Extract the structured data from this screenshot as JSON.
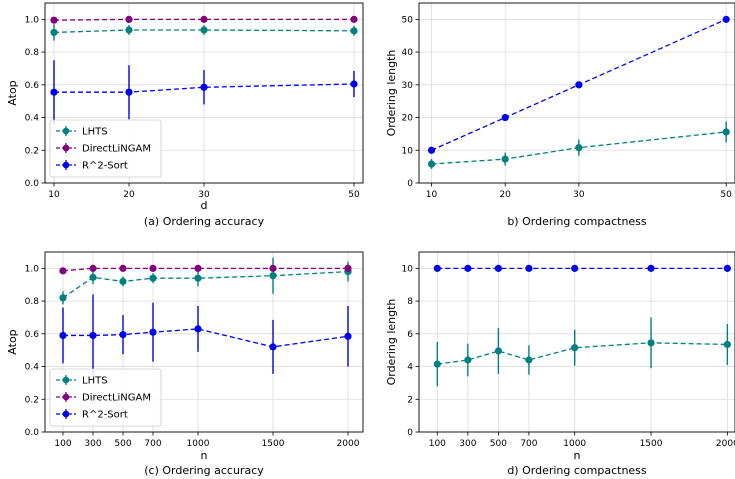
{
  "colors": {
    "LHTS": "#008080",
    "DirectLiNGAM": "#800080",
    "R^2-Sort": "#0000ee"
  },
  "chart_data": [
    {
      "type": "line",
      "caption": "(a) Ordering accuracy",
      "xlabel": "d",
      "ylabel": "Atop",
      "x": [
        10,
        20,
        30,
        50
      ],
      "xticks": [
        10,
        20,
        30,
        50
      ],
      "xlim": [
        8.8,
        51.2
      ],
      "yticks": [
        0.0,
        0.2,
        0.4,
        0.6,
        0.8,
        1.0
      ],
      "ylim": [
        0,
        1.1
      ],
      "grid": true,
      "legend": "lower-left",
      "series": [
        {
          "name": "LHTS",
          "values": [
            0.92,
            0.935,
            0.935,
            0.93
          ],
          "err": [
            0.05,
            0.03,
            0.03,
            0.03
          ]
        },
        {
          "name": "DirectLiNGAM",
          "values": [
            0.995,
            1.0,
            1.0,
            1.0
          ],
          "err": [
            0.01,
            0.005,
            0.005,
            0.0
          ]
        },
        {
          "name": "R^2-Sort",
          "values": [
            0.555,
            0.555,
            0.585,
            0.605
          ],
          "err": [
            0.195,
            0.165,
            0.105,
            0.08
          ]
        }
      ]
    },
    {
      "type": "line",
      "caption": "b) Ordering compactness",
      "xlabel": "",
      "ylabel": "Ordering length",
      "x": [
        10,
        20,
        30,
        50
      ],
      "xticks": [
        10,
        20,
        30,
        50
      ],
      "xlim": [
        8.3,
        51.2
      ],
      "yticks": [
        0,
        10,
        20,
        30,
        40,
        50
      ],
      "ylim": [
        0,
        55
      ],
      "grid": true,
      "series": [
        {
          "name": "R^2-Sort",
          "values": [
            10,
            20,
            30,
            50
          ],
          "err": [
            0,
            0,
            0,
            0
          ]
        },
        {
          "name": "LHTS",
          "values": [
            5.8,
            7.3,
            10.8,
            15.6
          ],
          "err": [
            1.5,
            2.0,
            2.5,
            3.2
          ]
        }
      ]
    },
    {
      "type": "line",
      "caption": "(c) Ordering accuracy",
      "xlabel": "n",
      "ylabel": "Atop",
      "x": [
        100,
        300,
        500,
        700,
        1000,
        1500,
        2000
      ],
      "xticks": [
        100,
        300,
        500,
        700,
        1000,
        1500,
        2000
      ],
      "xlim": [
        -20,
        2100
      ],
      "yticks": [
        0.0,
        0.2,
        0.4,
        0.6,
        0.8,
        1.0
      ],
      "ylim": [
        0,
        1.1
      ],
      "grid": true,
      "legend": "lower-left",
      "series": [
        {
          "name": "LHTS",
          "values": [
            0.82,
            0.945,
            0.92,
            0.94,
            0.94,
            0.955,
            0.98
          ],
          "err": [
            0.04,
            0.04,
            0.03,
            0.03,
            0.05,
            0.11,
            0.06
          ]
        },
        {
          "name": "DirectLiNGAM",
          "values": [
            0.985,
            1.0,
            1.0,
            1.0,
            1.0,
            1.0,
            1.0
          ],
          "err": [
            0.02,
            0.01,
            0.005,
            0.005,
            0.005,
            0.005,
            0.005
          ]
        },
        {
          "name": "R^2-Sort",
          "values": [
            0.59,
            0.59,
            0.595,
            0.61,
            0.63,
            0.52,
            0.585
          ],
          "err": [
            0.17,
            0.25,
            0.12,
            0.18,
            0.14,
            0.165,
            0.185
          ]
        }
      ]
    },
    {
      "type": "line",
      "caption": "d) Ordering compactness",
      "xlabel": "n",
      "ylabel": "Ordering length",
      "x": [
        100,
        300,
        500,
        700,
        1000,
        1500,
        2000
      ],
      "xticks": [
        100,
        300,
        500,
        700,
        1000,
        1500,
        2000
      ],
      "xlim": [
        -20,
        2050
      ],
      "yticks": [
        0,
        2,
        4,
        6,
        8,
        10
      ],
      "ylim": [
        0,
        11
      ],
      "grid": true,
      "series": [
        {
          "name": "R^2-Sort",
          "values": [
            10,
            10,
            10,
            10,
            10,
            10,
            10
          ],
          "err": [
            0,
            0,
            0,
            0,
            0,
            0,
            0
          ]
        },
        {
          "name": "LHTS",
          "values": [
            4.15,
            4.4,
            4.95,
            4.4,
            5.15,
            5.45,
            5.35
          ],
          "err": [
            1.35,
            1.0,
            1.4,
            0.9,
            1.1,
            1.55,
            1.25
          ]
        }
      ]
    }
  ]
}
